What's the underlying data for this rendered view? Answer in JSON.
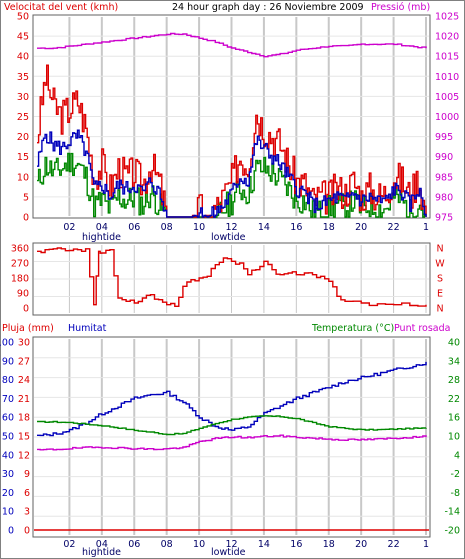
{
  "header": {
    "wind_label": "Velocitat del vent (kmh)",
    "title": "24 hour graph day : 26 Noviembre 2009",
    "pressure_label": "Pressió (mb)"
  },
  "middle": {
    "direction_labels": [
      "N",
      "E",
      "S",
      "W",
      "N"
    ]
  },
  "bottom": {
    "rain_label": "Pluja (mm)",
    "humidity_label": "Humitat",
    "temp_label": "Temperatura (°C)",
    "dew_label": "Punt rosada"
  },
  "tides": {
    "high": "hightide",
    "low": "lowtide"
  },
  "colors": {
    "wind_gust": "#dd0000",
    "wind_avg": "#0000bb",
    "wind_min": "#008800",
    "pressure": "#cc00cc",
    "direction": "#dd0000",
    "humidity": "#0000bb",
    "temperature": "#008800",
    "dew_point": "#cc00cc",
    "rain": "#dd0000",
    "grid": "#c8c8c8"
  },
  "chart_data": [
    {
      "type": "line",
      "name": "wind-pressure",
      "x_ticks": [
        "02",
        "04",
        "06",
        "08",
        "10",
        "12",
        "14",
        "16",
        "18",
        "20",
        "22",
        "1"
      ],
      "y_left": {
        "label": "Velocitat del vent (kmh)",
        "ticks": [
          0,
          5,
          10,
          15,
          20,
          25,
          30,
          35,
          40,
          45,
          50
        ],
        "range": [
          0,
          50
        ]
      },
      "y_right": {
        "label": "Pressió (mb)",
        "ticks": [
          975,
          980,
          985,
          990,
          995,
          1000,
          1005,
          1010,
          1015,
          1020,
          1025
        ],
        "range": [
          975,
          1025
        ]
      },
      "grid": true,
      "series": [
        {
          "key": "gust",
          "x": [
            0,
            0.5,
            1,
            1.5,
            2,
            2.5,
            3,
            3.5,
            4,
            4.5,
            5,
            5.5,
            6,
            6.5,
            7,
            7.5,
            8,
            8.5,
            9,
            9.5,
            10,
            10.5,
            11,
            11.5,
            12,
            12.5,
            13,
            13.5,
            14,
            14.5,
            15,
            15.5,
            16,
            16.5,
            17,
            17.5,
            18,
            18.5,
            19,
            19.5,
            20,
            20.5,
            21,
            21.5,
            22,
            22.5,
            23,
            23.5,
            24
          ],
          "values": [
            20,
            35,
            28,
            25,
            27,
            29,
            22,
            10,
            13,
            7,
            12,
            10,
            11,
            8,
            13,
            9,
            0,
            0,
            0,
            0,
            2,
            0,
            2,
            5,
            9,
            15,
            13,
            26,
            22,
            20,
            18,
            13,
            9,
            8,
            4,
            5,
            5,
            7,
            6,
            9,
            5,
            7,
            5,
            6,
            10,
            9,
            5,
            10,
            0
          ]
        },
        {
          "key": "average",
          "x": [
            0,
            0.5,
            1,
            1.5,
            2,
            2.5,
            3,
            3.5,
            4,
            4.5,
            5,
            5.5,
            6,
            6.5,
            7,
            7.5,
            8,
            8.5,
            9,
            9.5,
            10,
            10.5,
            11,
            11.5,
            12,
            12.5,
            13,
            13.5,
            14,
            14.5,
            15,
            15.5,
            16,
            16.5,
            17,
            17.5,
            18,
            18.5,
            19,
            19.5,
            20,
            20.5,
            21,
            21.5,
            22,
            22.5,
            23,
            23.5,
            24
          ],
          "values": [
            13,
            21,
            18,
            17,
            19,
            20,
            16,
            7,
            8,
            5,
            8,
            7,
            8,
            6,
            9,
            6,
            0,
            0,
            0,
            0,
            1,
            0,
            1,
            3,
            6,
            10,
            9,
            19,
            17,
            15,
            13,
            10,
            7,
            6,
            3,
            3,
            4,
            5,
            4,
            6,
            4,
            5,
            4,
            4,
            7,
            6,
            3,
            7,
            0
          ]
        },
        {
          "key": "minimum",
          "x": [
            0,
            0.5,
            1,
            1.5,
            2,
            2.5,
            3,
            3.5,
            4,
            4.5,
            5,
            5.5,
            6,
            6.5,
            7,
            7.5,
            8,
            8.5,
            9,
            9.5,
            10,
            10.5,
            11,
            11.5,
            12,
            12.5,
            13,
            13.5,
            14,
            14.5,
            15,
            15.5,
            16,
            16.5,
            17,
            17.5,
            18,
            18.5,
            19,
            19.5,
            20,
            20.5,
            21,
            21.5,
            22,
            22.5,
            23,
            23.5,
            24
          ],
          "values": [
            8,
            13,
            11,
            12,
            14,
            13,
            10,
            3,
            4,
            2,
            5,
            4,
            5,
            3,
            6,
            3,
            0,
            0,
            0,
            0,
            0,
            0,
            0,
            2,
            4,
            7,
            6,
            12,
            12,
            11,
            9,
            7,
            4,
            4,
            1,
            1,
            2,
            3,
            2,
            4,
            2,
            3,
            2,
            2,
            5,
            4,
            1,
            4,
            0
          ]
        },
        {
          "key": "pressure",
          "x": [
            0,
            1,
            2,
            3,
            4,
            5,
            6,
            7,
            8,
            9,
            10,
            11,
            12,
            13,
            14,
            15,
            16,
            17,
            18,
            19,
            20,
            21,
            22,
            23,
            24
          ],
          "values": [
            1017,
            1017,
            1017.5,
            1018,
            1018.5,
            1019,
            1019.5,
            1020,
            1020.5,
            1020.5,
            1019.5,
            1018.5,
            1017,
            1016,
            1015,
            1015.5,
            1016.5,
            1017,
            1017.5,
            1017.5,
            1018,
            1018,
            1018,
            1017.5,
            1017
          ]
        }
      ]
    },
    {
      "type": "line",
      "name": "wind-direction",
      "x_ticks": [],
      "y_left": {
        "ticks": [
          0,
          90,
          180,
          270,
          360
        ],
        "range": [
          0,
          360
        ]
      },
      "y_right": {
        "ticks": [
          "N",
          "E",
          "S",
          "W",
          "N"
        ]
      },
      "grid": true,
      "series": [
        {
          "key": "direction",
          "x": [
            0,
            0.5,
            1,
            1.5,
            2,
            2.5,
            3,
            3.5,
            3.8,
            4,
            4.5,
            5,
            5.5,
            6,
            6.5,
            7,
            7.5,
            8,
            8.5,
            9,
            9.5,
            10,
            10.5,
            11,
            11.5,
            12,
            12.5,
            13,
            13.5,
            14,
            14.5,
            15,
            15.5,
            16,
            16.5,
            17,
            17.5,
            18,
            18.5,
            19,
            20,
            21,
            22,
            23,
            24
          ],
          "values": [
            340,
            350,
            355,
            355,
            345,
            350,
            355,
            20,
            340,
            330,
            350,
            60,
            40,
            30,
            60,
            80,
            50,
            20,
            10,
            130,
            170,
            180,
            190,
            260,
            300,
            280,
            270,
            200,
            230,
            280,
            230,
            200,
            210,
            200,
            210,
            200,
            190,
            160,
            70,
            40,
            30,
            25,
            20,
            15,
            20
          ]
        }
      ]
    },
    {
      "type": "line",
      "name": "rain-humidity-temperature",
      "x_ticks": [
        "02",
        "04",
        "06",
        "08",
        "10",
        "12",
        "14",
        "16",
        "18",
        "20",
        "22",
        "1"
      ],
      "y_rain": {
        "label": "Pluja (mm)",
        "ticks": [
          0,
          3,
          6,
          9,
          12,
          15,
          18,
          21,
          24,
          27,
          30
        ],
        "range": [
          0,
          30
        ]
      },
      "y_humidity": {
        "label": "Humitat",
        "ticks": [
          0,
          10,
          20,
          30,
          40,
          50,
          60,
          70,
          80,
          90,
          100
        ],
        "range": [
          0,
          100
        ]
      },
      "y_temp": {
        "label": "Temperatura (°C)",
        "ticks": [
          -20,
          -14,
          -8,
          -2,
          4,
          10,
          16,
          22,
          28,
          34,
          40
        ],
        "range": [
          -20,
          40
        ]
      },
      "grid": true,
      "series": [
        {
          "key": "humidity",
          "x": [
            0,
            1,
            2,
            3,
            4,
            5,
            6,
            7,
            8,
            9,
            10,
            11,
            12,
            13,
            14,
            15,
            16,
            17,
            18,
            19,
            20,
            21,
            22,
            23,
            24
          ],
          "values": [
            50,
            51,
            53,
            57,
            62,
            66,
            70,
            72,
            73,
            68,
            60,
            55,
            53,
            55,
            62,
            66,
            70,
            73,
            76,
            79,
            81,
            83,
            85,
            87,
            89
          ]
        },
        {
          "key": "temperature",
          "x": [
            0,
            1,
            2,
            3,
            4,
            5,
            6,
            7,
            8,
            9,
            10,
            11,
            12,
            13,
            14,
            15,
            16,
            17,
            18,
            19,
            20,
            21,
            22,
            23,
            24
          ],
          "values": [
            14.5,
            14.5,
            14.3,
            13.8,
            13.3,
            12.6,
            11.8,
            11.2,
            10.5,
            10.8,
            12.5,
            14.0,
            15.3,
            16.0,
            16.4,
            16.2,
            15.5,
            14.2,
            13.0,
            12.4,
            12.0,
            12.0,
            12.2,
            12.4,
            12.5
          ]
        },
        {
          "key": "dew_point",
          "x": [
            0,
            1,
            2,
            3,
            4,
            5,
            6,
            7,
            8,
            9,
            10,
            11,
            12,
            13,
            14,
            15,
            16,
            17,
            18,
            19,
            20,
            21,
            22,
            23,
            24
          ],
          "values": [
            5.5,
            5.7,
            6.0,
            6.3,
            6.4,
            6.2,
            6.0,
            5.8,
            5.9,
            6.3,
            8.2,
            9.2,
            9.7,
            9.5,
            9.9,
            10.0,
            9.6,
            9.3,
            9.0,
            8.8,
            8.8,
            9.0,
            9.3,
            9.6,
            9.8
          ]
        },
        {
          "key": "rain",
          "x": [
            0,
            24
          ],
          "values": [
            0,
            0
          ]
        }
      ]
    }
  ]
}
